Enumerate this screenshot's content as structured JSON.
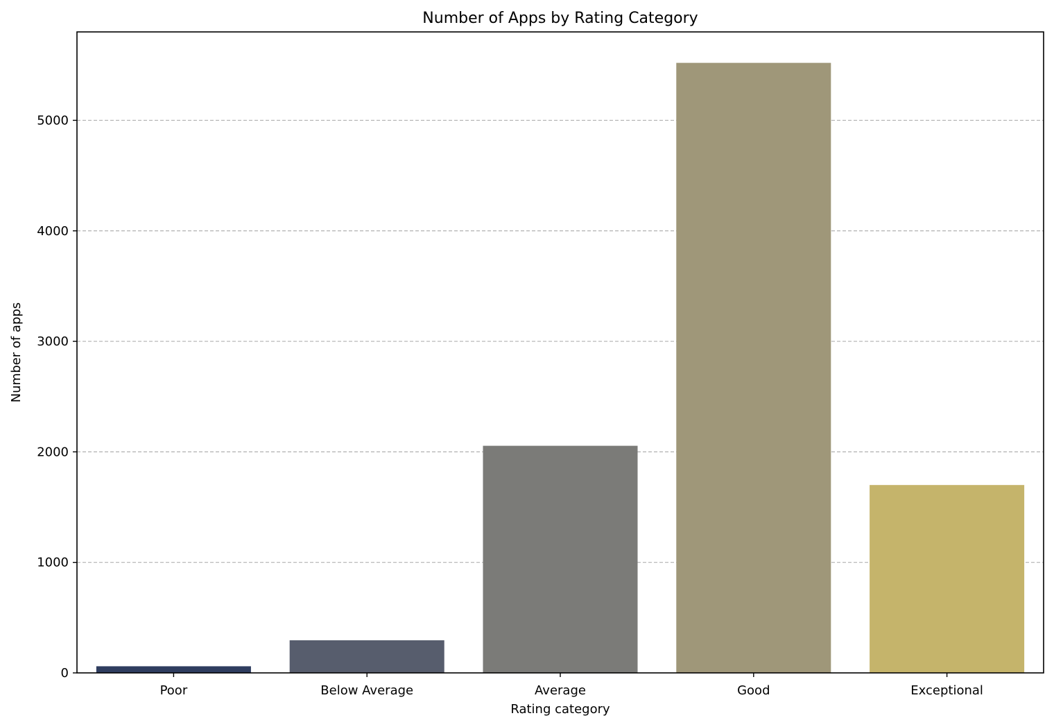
{
  "chart_data": {
    "type": "bar",
    "title": "Number of Apps by Rating Category",
    "xlabel": "Rating category",
    "ylabel": "Number of apps",
    "categories": [
      "Poor",
      "Below Average",
      "Average",
      "Good",
      "Exceptional"
    ],
    "values": [
      60,
      295,
      2055,
      5520,
      1700
    ],
    "colors": [
      "#2f3d5f",
      "#575d6d",
      "#7b7b78",
      "#9f9779",
      "#c5b46b"
    ],
    "ylim": [
      0,
      5800
    ],
    "yticks": [
      0,
      1000,
      2000,
      3000,
      4000,
      5000
    ],
    "grid": true
  }
}
